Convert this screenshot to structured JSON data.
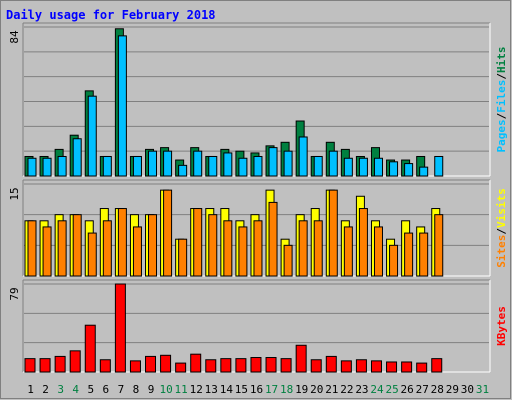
{
  "chart_data": {
    "type": "bar",
    "title": "Daily usage for February 2018",
    "days": [
      "1",
      "2",
      "3",
      "4",
      "5",
      "6",
      "7",
      "8",
      "9",
      "10",
      "11",
      "12",
      "13",
      "14",
      "15",
      "16",
      "17",
      "18",
      "19",
      "20",
      "21",
      "22",
      "23",
      "24",
      "25",
      "26",
      "27",
      "28",
      "29",
      "30",
      "31"
    ],
    "weekend_days": [
      "3",
      "4",
      "10",
      "11",
      "17",
      "18",
      "24",
      "25",
      "31"
    ],
    "panels": [
      {
        "id": "hits-files-pages",
        "max_label": "84",
        "ylim": [
          0,
          84
        ],
        "legend": [
          "Hits",
          "/",
          "Files",
          "/",
          "Pages"
        ],
        "series": [
          {
            "name": "Hits",
            "color": "#008040",
            "values": [
              11,
              11,
              15,
              23,
              48,
              11,
              83,
              11,
              15,
              16,
              9,
              16,
              11,
              15,
              14,
              13,
              17,
              19,
              31,
              11,
              19,
              15,
              11,
              16,
              9,
              9,
              11,
              0,
              0,
              0,
              0
            ]
          },
          {
            "name": "Files",
            "color": "#00c0ff",
            "values": [
              10,
              10,
              11,
              21,
              45,
              11,
              79,
              11,
              14,
              14,
              6,
              14,
              11,
              13,
              10,
              11,
              16,
              14,
              22,
              11,
              14,
              10,
              10,
              10,
              8,
              7,
              5,
              11,
              0,
              0,
              0
            ]
          }
        ]
      },
      {
        "id": "visits-sites",
        "max_label": "15",
        "ylim": [
          0,
          15
        ],
        "legend": [
          "Visits",
          "/",
          "Sites"
        ],
        "series": [
          {
            "name": "Visits",
            "color": "#ffff00",
            "values": [
              9,
              9,
              10,
              10,
              9,
              11,
              11,
              10,
              10,
              14,
              6,
              11,
              11,
              11,
              9,
              10,
              14,
              6,
              10,
              11,
              14,
              9,
              13,
              9,
              6,
              9,
              8,
              11,
              0,
              0,
              0
            ]
          },
          {
            "name": "Sites",
            "color": "#ff8000",
            "values": [
              9,
              8,
              9,
              10,
              7,
              9,
              11,
              8,
              10,
              14,
              6,
              11,
              10,
              9,
              8,
              9,
              12,
              5,
              9,
              9,
              14,
              8,
              11,
              8,
              5,
              7,
              7,
              10,
              0,
              0,
              0
            ]
          }
        ]
      },
      {
        "id": "kbytes",
        "max_label": "79",
        "ylim": [
          0,
          79
        ],
        "legend": [
          "KBytes"
        ],
        "series": [
          {
            "name": "KBytes",
            "color": "#ff0000",
            "values": [
              12,
              12,
              14,
              19,
              42,
              11,
              79,
              10,
              14,
              15,
              8,
              16,
              11,
              12,
              12,
              13,
              13,
              12,
              24,
              11,
              14,
              10,
              11,
              10,
              9,
              9,
              8,
              12,
              0,
              0,
              0
            ]
          }
        ]
      }
    ]
  }
}
